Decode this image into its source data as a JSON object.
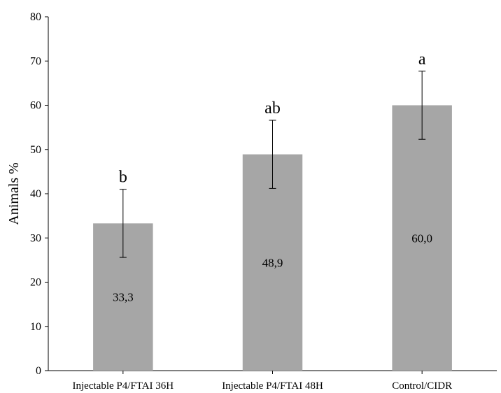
{
  "chart_data": {
    "type": "bar",
    "title": "",
    "xlabel": "",
    "ylabel": "Animals %",
    "ylim": [
      0,
      80
    ],
    "yticks": [
      0,
      10,
      20,
      30,
      40,
      50,
      60,
      70,
      80
    ],
    "grid": false,
    "categories": [
      "Injectable P4/FTAI 36H",
      "Injectable P4/FTAI 48H",
      "Control/CIDR"
    ],
    "values": [
      33.3,
      48.9,
      60.0
    ],
    "value_labels": [
      "33,3",
      "48,9",
      "60,0"
    ],
    "errors": [
      7.7,
      7.7,
      7.7
    ],
    "significance_letters": [
      "b",
      "ab",
      "a"
    ],
    "bar_color": "#a6a6a6",
    "axis_color": "#000000",
    "error_bar_color": "#000000"
  }
}
